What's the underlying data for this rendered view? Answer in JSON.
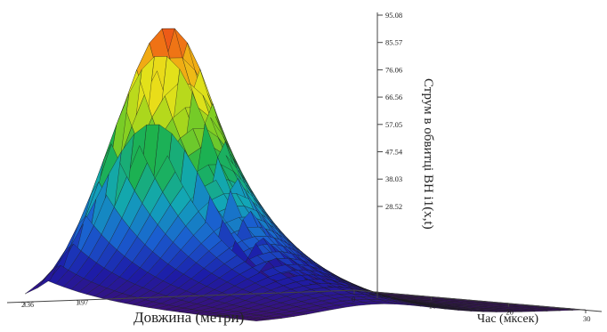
{
  "chart_data": {
    "type": "surface3d",
    "title": "",
    "xlabel": "Довжина (метри)",
    "ylabel": "Час (мксек)",
    "zlabel": "Струм в обвитці ВН i1(x,t)",
    "z_ticks": [
      "95.08",
      "85.57",
      "76.06",
      "66.56",
      "57.05",
      "47.54",
      "38.03",
      "28.52"
    ],
    "z_range": [
      0,
      95.08
    ],
    "time_ticks": [
      "0",
      "10",
      "20",
      "30"
    ],
    "time_range": [
      0,
      30
    ],
    "length_ticks": [
      "2.36",
      "1.97"
    ],
    "length_range": [
      0,
      2.36
    ],
    "surface": {
      "peak_value": 95.08,
      "peak_position": {
        "length": 1.5,
        "time": 3
      },
      "colormap": [
        "#3f0f6e",
        "#1c1ca8",
        "#1a5fd0",
        "#12a6b8",
        "#1db24c",
        "#8fd21e",
        "#e8e21a",
        "#f39a12",
        "#e7231c"
      ],
      "grid_lines": true
    }
  }
}
